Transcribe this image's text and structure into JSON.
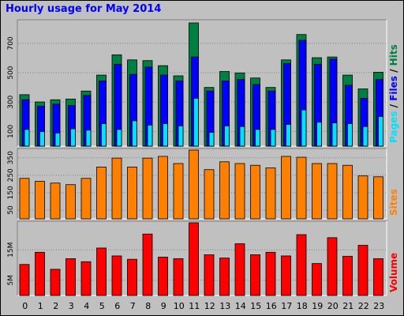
{
  "title": "Hourly usage for May 2014",
  "colors": {
    "background": "#c0c0c0",
    "panel": "#c0c0c0",
    "hits": "#008040",
    "files": "#0000ff",
    "pages": "#00e0ff",
    "sites": "#ff8000",
    "volume": "#ff0000"
  },
  "chart_data": [
    {
      "type": "bar",
      "panel": "hits-files-pages",
      "categories": [
        "0",
        "1",
        "2",
        "3",
        "4",
        "5",
        "6",
        "7",
        "8",
        "9",
        "10",
        "11",
        "12",
        "13",
        "14",
        "15",
        "16",
        "17",
        "18",
        "19",
        "20",
        "21",
        "22",
        "23"
      ],
      "series": [
        {
          "name": "Hits",
          "values": [
            355,
            305,
            320,
            325,
            380,
            490,
            630,
            595,
            590,
            555,
            485,
            850,
            405,
            515,
            505,
            470,
            405,
            595,
            770,
            610,
            615,
            490,
            395,
            510
          ]
        },
        {
          "name": "Files",
          "values": [
            320,
            275,
            290,
            280,
            350,
            450,
            565,
            495,
            545,
            490,
            450,
            615,
            380,
            450,
            460,
            425,
            380,
            570,
            730,
            565,
            600,
            420,
            330,
            460
          ]
        },
        {
          "name": "Pages",
          "values": [
            115,
            100,
            90,
            120,
            110,
            155,
            115,
            175,
            145,
            155,
            140,
            330,
            95,
            140,
            135,
            115,
            115,
            150,
            250,
            165,
            160,
            155,
            135,
            205
          ]
        }
      ],
      "ylabel_parts": [
        "Pages",
        " / ",
        "Files",
        " / ",
        "Hits"
      ],
      "yticks": [
        100,
        300,
        500,
        700
      ],
      "ylim": [
        0,
        850
      ]
    },
    {
      "type": "bar",
      "panel": "sites",
      "categories": [
        "0",
        "1",
        "2",
        "3",
        "4",
        "5",
        "6",
        "7",
        "8",
        "9",
        "10",
        "11",
        "12",
        "13",
        "14",
        "15",
        "16",
        "17",
        "18",
        "19",
        "20",
        "21",
        "22",
        "23"
      ],
      "series": [
        {
          "name": "Sites",
          "values": [
            232,
            215,
            205,
            196,
            232,
            297,
            348,
            297,
            348,
            358,
            317,
            394,
            282,
            327,
            317,
            307,
            292,
            358,
            353,
            317,
            317,
            307,
            246,
            241
          ]
        }
      ],
      "ylabel": "Sites",
      "yticks": [
        50,
        150,
        250,
        350
      ],
      "ylim": [
        0,
        394
      ]
    },
    {
      "type": "bar",
      "panel": "volume",
      "categories": [
        "0",
        "1",
        "2",
        "3",
        "4",
        "5",
        "6",
        "7",
        "8",
        "9",
        "10",
        "11",
        "12",
        "13",
        "14",
        "15",
        "16",
        "17",
        "18",
        "19",
        "20",
        "21",
        "22",
        "23"
      ],
      "series": [
        {
          "name": "Volume",
          "values": [
            10.2,
            14.2,
            8.6,
            12.1,
            11.1,
            15.6,
            13.0,
            11.9,
            20.2,
            12.6,
            12.1,
            23.9,
            13.4,
            12.3,
            17.0,
            13.4,
            14.2,
            13.0,
            20.0,
            10.5,
            19.0,
            12.9,
            16.5,
            12.1
          ]
        }
      ],
      "ylabel": "Volume",
      "ytick_labels": [
        "5M",
        "15M"
      ],
      "ytick_values": [
        5,
        15
      ],
      "ylim": [
        0,
        23.9
      ]
    }
  ]
}
